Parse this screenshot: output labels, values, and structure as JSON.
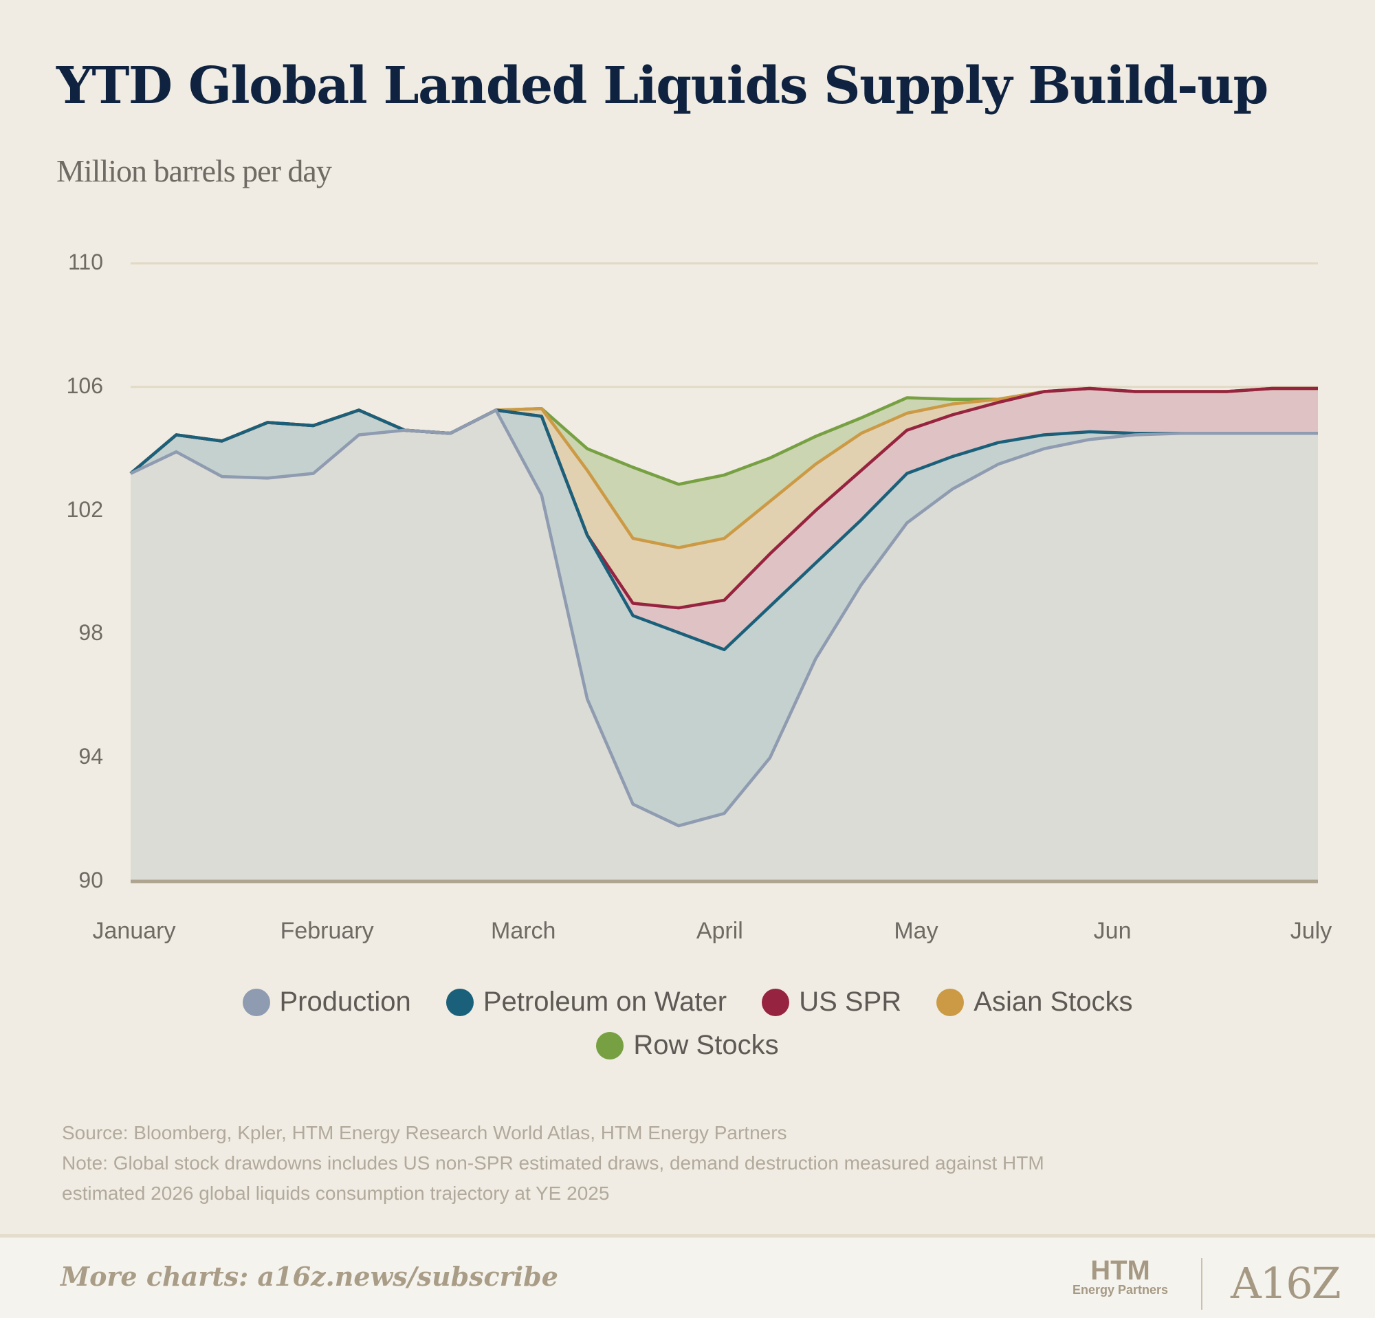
{
  "chart_data": {
    "type": "area",
    "stacked": true,
    "title": "YTD Global Landed Liquids Supply Build-up",
    "subtitle": "Million barrels per day",
    "xlabel": "",
    "ylabel": "",
    "ylim": [
      90,
      110
    ],
    "yticks": [
      "110",
      "106",
      "102",
      "98",
      "94",
      "90"
    ],
    "ytick_values": [
      110,
      106,
      102,
      98,
      94,
      90
    ],
    "xticks": [
      "January",
      "February",
      "March",
      "April",
      "May",
      "Jun",
      "July"
    ],
    "xtick_weeks": [
      0,
      4.3,
      8.6,
      12.9,
      17.2,
      21.5,
      26
    ],
    "x_weeks": [
      0,
      1,
      2,
      3,
      4,
      5,
      6,
      7,
      8,
      9,
      10,
      11,
      12,
      13,
      14,
      15,
      16,
      17,
      18,
      19,
      20,
      21,
      22,
      23,
      24,
      25,
      26
    ],
    "grid": true,
    "legend_position": "bottom",
    "series_note": "values are cumulative stacked tops",
    "series": [
      {
        "name": "Production",
        "color": "#8e9bb0",
        "fill": "#dcdcd6",
        "values": [
          103.2,
          103.9,
          103.1,
          103.05,
          103.2,
          104.45,
          104.6,
          104.5,
          105.25,
          102.5,
          95.9,
          92.5,
          91.8,
          92.2,
          94.0,
          97.2,
          99.6,
          101.6,
          102.7,
          103.5,
          104.0,
          104.3,
          104.45,
          104.5,
          104.5,
          104.5,
          104.5
        ]
      },
      {
        "name": "Petroleum on Water",
        "color": "#1a607a",
        "fill": "#c5d1cf",
        "values": [
          103.2,
          104.45,
          104.25,
          104.85,
          104.75,
          105.25,
          104.6,
          104.5,
          105.25,
          105.05,
          101.2,
          98.6,
          98.05,
          97.5,
          98.9,
          100.3,
          101.7,
          103.2,
          103.75,
          104.2,
          104.45,
          104.55,
          104.5,
          104.5,
          104.5,
          104.5,
          104.5
        ]
      },
      {
        "name": "US SPR",
        "color": "#962340",
        "fill": "#dfc3c4",
        "values": [
          103.2,
          104.45,
          104.25,
          104.85,
          104.75,
          105.25,
          104.6,
          104.5,
          105.25,
          105.05,
          101.2,
          99.0,
          98.85,
          99.1,
          100.6,
          102.0,
          103.3,
          104.6,
          105.1,
          105.5,
          105.85,
          105.95,
          105.85,
          105.85,
          105.85,
          105.95,
          105.95
        ]
      },
      {
        "name": "Asian Stocks",
        "color": "#cc9a45",
        "fill": "#e2d1b0",
        "values": [
          103.2,
          104.45,
          104.25,
          104.85,
          104.75,
          105.25,
          104.6,
          104.5,
          105.25,
          105.3,
          103.3,
          101.1,
          100.8,
          101.1,
          102.3,
          103.5,
          104.5,
          105.15,
          105.45,
          105.6,
          105.85,
          105.95,
          105.85,
          105.85,
          105.85,
          105.95,
          105.95
        ]
      },
      {
        "name": "Row Stocks",
        "color": "#76a042",
        "fill": "#ccd5b2",
        "values": [
          103.2,
          104.45,
          104.25,
          104.85,
          104.75,
          105.25,
          104.6,
          104.5,
          105.25,
          105.3,
          104.0,
          103.4,
          102.85,
          103.15,
          103.7,
          104.4,
          105.0,
          105.65,
          105.6,
          105.6,
          105.85,
          105.95,
          105.85,
          105.85,
          105.85,
          105.95,
          105.95
        ]
      }
    ]
  },
  "source": "Source: Bloomberg, Kpler, HTM Energy Research World Atlas, HTM Energy Partners",
  "note_line1": "Note: Global stock drawdowns includes US non-SPR estimated draws, demand destruction measured against HTM",
  "note_line2": "estimated 2026 global liquids consumption trajectory at YE 2025",
  "footer": {
    "cta": "More charts: a16z.news/subscribe",
    "logo_htm": "HTM",
    "logo_htm_sub": "Energy Partners",
    "logo_a16z": "A16Z"
  }
}
